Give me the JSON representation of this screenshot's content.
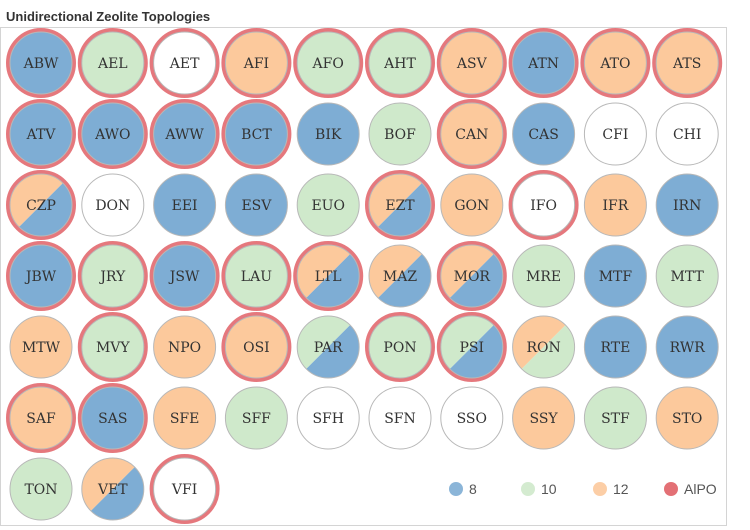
{
  "title": "Unidirectional Zeolite Topologies",
  "chart_data": {
    "type": "scatter",
    "encoding": "Each circle is a zeolite framework code; fill color shows ring size (8 = blue, 10 = green, 12 = orange, split fill = two ring sizes, white = none of these); red ring marks AlPO member.",
    "columns": 10,
    "colors": {
      "8": "#7eadd4",
      "10": "#cfe9cb",
      "12": "#fcc99c",
      "AlPO": "#e06066",
      "none": "#ffffff"
    },
    "items": [
      {
        "code": "ABW",
        "rings": [
          8
        ],
        "alpo": true
      },
      {
        "code": "AEL",
        "rings": [
          10
        ],
        "alpo": true
      },
      {
        "code": "AET",
        "rings": [],
        "alpo": true
      },
      {
        "code": "AFI",
        "rings": [
          12
        ],
        "alpo": true
      },
      {
        "code": "AFO",
        "rings": [
          10
        ],
        "alpo": true
      },
      {
        "code": "AHT",
        "rings": [
          10
        ],
        "alpo": true
      },
      {
        "code": "ASV",
        "rings": [
          12
        ],
        "alpo": true
      },
      {
        "code": "ATN",
        "rings": [
          8
        ],
        "alpo": true
      },
      {
        "code": "ATO",
        "rings": [
          12
        ],
        "alpo": true
      },
      {
        "code": "ATS",
        "rings": [
          12
        ],
        "alpo": true
      },
      {
        "code": "ATV",
        "rings": [
          8
        ],
        "alpo": true
      },
      {
        "code": "AWO",
        "rings": [
          8
        ],
        "alpo": true
      },
      {
        "code": "AWW",
        "rings": [
          8
        ],
        "alpo": true
      },
      {
        "code": "BCT",
        "rings": [
          8
        ],
        "alpo": true
      },
      {
        "code": "BIK",
        "rings": [
          8
        ],
        "alpo": false
      },
      {
        "code": "BOF",
        "rings": [
          10
        ],
        "alpo": false
      },
      {
        "code": "CAN",
        "rings": [
          12
        ],
        "alpo": true
      },
      {
        "code": "CAS",
        "rings": [
          8
        ],
        "alpo": false
      },
      {
        "code": "CFI",
        "rings": [],
        "alpo": false
      },
      {
        "code": "CHI",
        "rings": [],
        "alpo": false
      },
      {
        "code": "CZP",
        "rings": [
          12,
          8
        ],
        "alpo": true
      },
      {
        "code": "DON",
        "rings": [],
        "alpo": false
      },
      {
        "code": "EEI",
        "rings": [
          8
        ],
        "alpo": false
      },
      {
        "code": "ESV",
        "rings": [
          8
        ],
        "alpo": false
      },
      {
        "code": "EUO",
        "rings": [
          10
        ],
        "alpo": false
      },
      {
        "code": "EZT",
        "rings": [
          12,
          8
        ],
        "alpo": true
      },
      {
        "code": "GON",
        "rings": [
          12
        ],
        "alpo": false
      },
      {
        "code": "IFO",
        "rings": [],
        "alpo": true
      },
      {
        "code": "IFR",
        "rings": [
          12
        ],
        "alpo": false
      },
      {
        "code": "IRN",
        "rings": [
          8
        ],
        "alpo": false
      },
      {
        "code": "JBW",
        "rings": [
          8
        ],
        "alpo": true
      },
      {
        "code": "JRY",
        "rings": [
          10
        ],
        "alpo": true
      },
      {
        "code": "JSW",
        "rings": [
          8
        ],
        "alpo": true
      },
      {
        "code": "LAU",
        "rings": [
          10
        ],
        "alpo": true
      },
      {
        "code": "LTL",
        "rings": [
          12,
          8
        ],
        "alpo": true
      },
      {
        "code": "MAZ",
        "rings": [
          12,
          8
        ],
        "alpo": false
      },
      {
        "code": "MOR",
        "rings": [
          12,
          8
        ],
        "alpo": true
      },
      {
        "code": "MRE",
        "rings": [
          10
        ],
        "alpo": false
      },
      {
        "code": "MTF",
        "rings": [
          8
        ],
        "alpo": false
      },
      {
        "code": "MTT",
        "rings": [
          10
        ],
        "alpo": false
      },
      {
        "code": "MTW",
        "rings": [
          12
        ],
        "alpo": false
      },
      {
        "code": "MVY",
        "rings": [
          10
        ],
        "alpo": true
      },
      {
        "code": "NPO",
        "rings": [
          12
        ],
        "alpo": false
      },
      {
        "code": "OSI",
        "rings": [
          12
        ],
        "alpo": true
      },
      {
        "code": "PAR",
        "rings": [
          10,
          8
        ],
        "alpo": false
      },
      {
        "code": "PON",
        "rings": [
          10
        ],
        "alpo": true
      },
      {
        "code": "PSI",
        "rings": [
          10,
          8
        ],
        "alpo": true
      },
      {
        "code": "RON",
        "rings": [
          12,
          10
        ],
        "alpo": false
      },
      {
        "code": "RTE",
        "rings": [
          8
        ],
        "alpo": false
      },
      {
        "code": "RWR",
        "rings": [
          8
        ],
        "alpo": false
      },
      {
        "code": "SAF",
        "rings": [
          12
        ],
        "alpo": true
      },
      {
        "code": "SAS",
        "rings": [
          8
        ],
        "alpo": true
      },
      {
        "code": "SFE",
        "rings": [
          12
        ],
        "alpo": false
      },
      {
        "code": "SFF",
        "rings": [
          10
        ],
        "alpo": false
      },
      {
        "code": "SFH",
        "rings": [],
        "alpo": false
      },
      {
        "code": "SFN",
        "rings": [],
        "alpo": false
      },
      {
        "code": "SSO",
        "rings": [],
        "alpo": false
      },
      {
        "code": "SSY",
        "rings": [
          12
        ],
        "alpo": false
      },
      {
        "code": "STF",
        "rings": [
          10
        ],
        "alpo": false
      },
      {
        "code": "STO",
        "rings": [
          12
        ],
        "alpo": false
      },
      {
        "code": "TON",
        "rings": [
          10
        ],
        "alpo": false
      },
      {
        "code": "VET",
        "rings": [
          12,
          8
        ],
        "alpo": false
      },
      {
        "code": "VFI",
        "rings": [],
        "alpo": true
      }
    ],
    "legend": {
      "placement": "bottom-right",
      "entries": [
        {
          "label": "8",
          "color": "#7eadd4"
        },
        {
          "label": "10",
          "color": "#cfe9cb"
        },
        {
          "label": "12",
          "color": "#fcc99c"
        },
        {
          "label": "AlPO",
          "color": "#e06066"
        }
      ]
    }
  }
}
